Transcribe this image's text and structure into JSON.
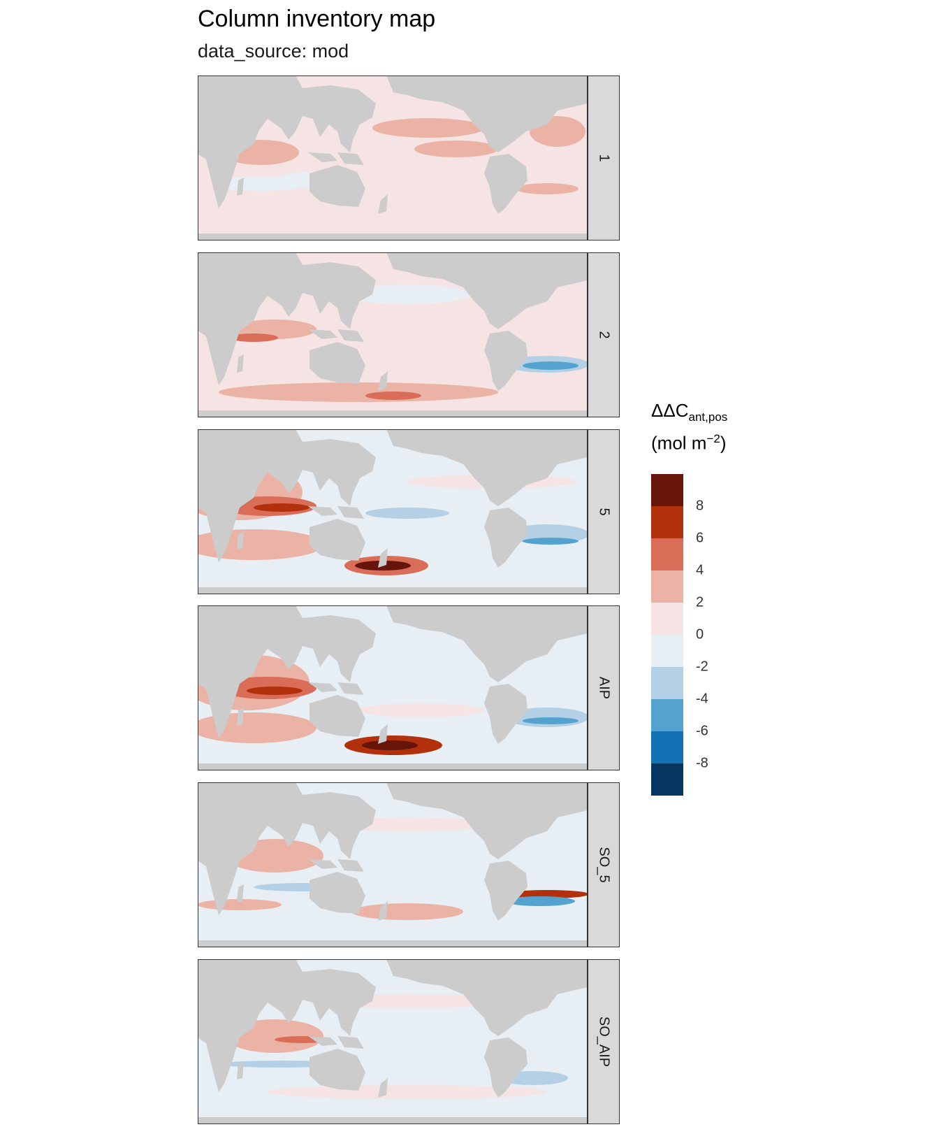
{
  "title": "Column inventory map",
  "subtitle": "data_source: mod",
  "panels": [
    {
      "label": "1"
    },
    {
      "label": "2"
    },
    {
      "label": "5"
    },
    {
      "label": "AIP"
    },
    {
      "label": "SO_5"
    },
    {
      "label": "SO_AIP"
    }
  ],
  "legend": {
    "title_main": "ΔΔC",
    "title_sub": "ant,pos",
    "unit_open": "(mol m",
    "unit_sup": "−2",
    "unit_close": ")",
    "breaks": [
      "8",
      "6",
      "4",
      "2",
      "0",
      "-2",
      "-4",
      "-6",
      "-8"
    ],
    "colors": [
      "#67140b",
      "#b2300c",
      "#d96d58",
      "#ebb2a6",
      "#f5e4e3",
      "#e7eef4",
      "#b3d0e6",
      "#54a3cf",
      "#1372b4",
      "#053660"
    ]
  },
  "colors": {
    "land": "#cccccc",
    "panel_border": "#333333",
    "strip_bg": "#d9d9d9"
  }
}
